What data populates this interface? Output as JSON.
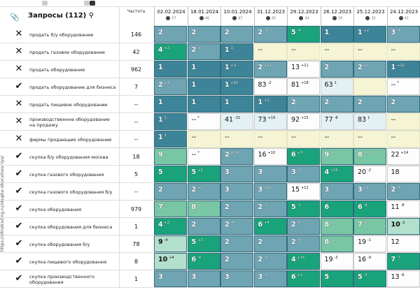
{
  "header": {
    "title": "Запросы (112)",
    "frequency_label": "Частота",
    "search_icon": "search-icon",
    "attach_icon": "paperclip-icon"
  },
  "side_url": "https://ultratrading.ru/skupka-oborudovaniya/",
  "columns": [
    {
      "date": "02.02.2024",
      "pos": "57"
    },
    {
      "date": "18.01.2024",
      "pos": "46"
    },
    {
      "date": "10.01.2024",
      "pos": "47"
    },
    {
      "date": "31.12.2023",
      "pos": "45"
    },
    {
      "date": "29.12.2023",
      "pos": "44"
    },
    {
      "date": "26.12.2023",
      "pos": "39"
    },
    {
      "date": "25.12.2023",
      "pos": "35"
    },
    {
      "date": "24.12.2023",
      "pos": "41"
    }
  ],
  "legend_colors": {
    "d": "#3e8498",
    "m": "#6fa4b3",
    "g": "#1aa37a",
    "lg": "#78c6a4",
    "pg": "#b3e0cc",
    "w": "#fdfdfd",
    "pb": "#e3f1f4",
    "y": "#f5f5d6"
  },
  "rows": [
    {
      "status": "excluded",
      "keyword": "продать б/у оборудование",
      "freq": "146",
      "cells": [
        [
          "2",
          "",
          "m"
        ],
        [
          "2",
          "",
          "m"
        ],
        [
          "2",
          "",
          "m"
        ],
        [
          "2",
          "-3",
          "m"
        ],
        [
          "5",
          "-4",
          "g"
        ],
        [
          "1",
          "",
          "d"
        ],
        [
          "1",
          "+2",
          "d"
        ],
        [
          "3",
          "-4",
          "m"
        ]
      ]
    },
    {
      "status": "excluded",
      "keyword": "продать газовое оборудование",
      "freq": "42",
      "cells": [
        [
          "4",
          "+2",
          "g"
        ],
        [
          "2",
          "+1",
          "m"
        ],
        [
          "1",
          "1",
          "d"
        ],
        [
          "--",
          "",
          "y"
        ],
        [
          "--",
          "",
          "y"
        ],
        [
          "--",
          "",
          "y"
        ],
        [
          "--",
          "",
          "y"
        ],
        [
          "--",
          "",
          "y"
        ]
      ]
    },
    {
      "status": "excluded",
      "keyword": "продать оборудование",
      "freq": "962",
      "cells": [
        [
          "1",
          "",
          "d"
        ],
        [
          "1",
          "",
          "d"
        ],
        [
          "1",
          "+3",
          "d"
        ],
        [
          "2",
          "+11",
          "m"
        ],
        [
          "13",
          "+11",
          "w"
        ],
        [
          "2",
          "",
          "m"
        ],
        [
          "2",
          "+1",
          "m"
        ],
        [
          "1",
          "+12",
          "d"
        ]
      ]
    },
    {
      "status": "included",
      "keyword": "продать оборудование для бизнеса",
      "freq": "7",
      "cells": [
        [
          "2",
          "+1",
          "m"
        ],
        [
          "1",
          "",
          "d"
        ],
        [
          "1",
          "+82",
          "d"
        ],
        [
          "83",
          "-2",
          "w"
        ],
        [
          "81",
          "+18",
          "w"
        ],
        [
          "63",
          "1",
          "pb"
        ],
        [
          "",
          "",
          "y"
        ],
        [
          "--",
          "*",
          "w"
        ]
      ]
    },
    {
      "status": "excluded",
      "keyword": "продать пищевое оборудование",
      "freq": "--",
      "cells": [
        [
          "1",
          "",
          "d"
        ],
        [
          "1",
          "",
          "d"
        ],
        [
          "1",
          "",
          "d"
        ],
        [
          "1",
          "+1",
          "d"
        ],
        [
          "2",
          "",
          "m"
        ],
        [
          "2",
          "",
          "m"
        ],
        [
          "2",
          "",
          "m"
        ],
        [
          "2",
          "",
          "m"
        ]
      ]
    },
    {
      "status": "excluded",
      "keyword": "производственное оборудование на продажу",
      "freq": "--",
      "cells": [
        [
          "1",
          "1",
          "d"
        ],
        [
          "--",
          "*",
          "w"
        ],
        [
          "41",
          "-32",
          "pb"
        ],
        [
          "73",
          "+19",
          "pb"
        ],
        [
          "92",
          "+15",
          "w"
        ],
        [
          "77",
          "-8",
          "pb"
        ],
        [
          "83",
          "1",
          "pb"
        ],
        [
          "--",
          "",
          "y"
        ]
      ]
    },
    {
      "status": "excluded",
      "keyword": "фирмы продающие оборудование",
      "freq": "--",
      "cells": [
        [
          "1",
          "1",
          "d"
        ],
        [
          "--",
          "",
          "y"
        ],
        [
          "--",
          "",
          "y"
        ],
        [
          "--",
          "",
          "y"
        ],
        [
          "--",
          "",
          "y"
        ],
        [
          "--",
          "",
          "y"
        ],
        [
          "--",
          "",
          "y"
        ],
        [
          "--",
          "",
          "y"
        ]
      ]
    },
    {
      "status": "included",
      "keyword": "скупка б/у оборудования москва",
      "freq": "18",
      "cells": [
        [
          "9",
          "1",
          "lg"
        ],
        [
          "--",
          "*",
          "w"
        ],
        [
          "2",
          "+14",
          "m"
        ],
        [
          "16",
          "+10",
          "w"
        ],
        [
          "6",
          "+3",
          "g"
        ],
        [
          "9",
          "+1",
          "lg"
        ],
        [
          "8",
          "+14",
          "lg"
        ],
        [
          "22",
          "+14",
          "w"
        ]
      ]
    },
    {
      "status": "included",
      "keyword": "скупка газового оборудования",
      "freq": "5",
      "cells": [
        [
          "5",
          "",
          "g"
        ],
        [
          "5",
          "+2",
          "g"
        ],
        [
          "3",
          "",
          "m"
        ],
        [
          "3",
          "",
          "m"
        ],
        [
          "3",
          "-1",
          "m"
        ],
        [
          "4",
          "+16",
          "g"
        ],
        [
          "20",
          "-2",
          "w"
        ],
        [
          "18",
          "",
          "w"
        ]
      ]
    },
    {
      "status": "included",
      "keyword": "скупка газового оборудования б/у",
      "freq": "--",
      "cells": [
        [
          "2",
          "",
          "m"
        ],
        [
          "2",
          "+1",
          "m"
        ],
        [
          "3",
          "",
          "m"
        ],
        [
          "3",
          "+12",
          "m"
        ],
        [
          "15",
          "+12",
          "w"
        ],
        [
          "3",
          "",
          "m"
        ],
        [
          "3",
          "+1",
          "m"
        ],
        [
          "2",
          "-1",
          "m"
        ]
      ]
    },
    {
      "status": "included",
      "keyword": "скупка оборудования",
      "freq": "979",
      "cells": [
        [
          "7",
          "-1",
          "lg"
        ],
        [
          "8",
          "+6",
          "lg"
        ],
        [
          "2",
          "",
          "m"
        ],
        [
          "2",
          "-3",
          "m"
        ],
        [
          "5",
          "-1",
          "g"
        ],
        [
          "6",
          "",
          "g"
        ],
        [
          "6",
          "-6",
          "g"
        ],
        [
          "11",
          "-8",
          "w"
        ]
      ]
    },
    {
      "status": "included",
      "keyword": "скупка оборудования для бизнеса",
      "freq": "1",
      "cells": [
        [
          "4",
          "+2",
          "g"
        ],
        [
          "2",
          "",
          "m"
        ],
        [
          "2",
          "-4",
          "m"
        ],
        [
          "6",
          "+4",
          "g"
        ],
        [
          "2",
          "-6",
          "m"
        ],
        [
          "8",
          "+1",
          "lg"
        ],
        [
          "7",
          "-8",
          "lg"
        ],
        [
          "10",
          "-2",
          "pg"
        ]
      ]
    },
    {
      "status": "included",
      "keyword": "скупка оборудования б/у",
      "freq": "78",
      "cells": [
        [
          "9",
          "-4",
          "pg"
        ],
        [
          "5",
          "+3",
          "g"
        ],
        [
          "2",
          "",
          "m"
        ],
        [
          "2",
          "",
          "m"
        ],
        [
          "2",
          "-6",
          "m"
        ],
        [
          "8",
          "+11",
          "lg"
        ],
        [
          "19",
          "-1",
          "w"
        ],
        [
          "12",
          "",
          "w"
        ]
      ]
    },
    {
      "status": "included",
      "keyword": "скупка пищевого оборудования",
      "freq": "8",
      "cells": [
        [
          "10",
          "+4",
          "pg"
        ],
        [
          "6",
          "-4",
          "g"
        ],
        [
          "2",
          "",
          "m"
        ],
        [
          "2",
          "-2",
          "m"
        ],
        [
          "4",
          "+15",
          "g"
        ],
        [
          "19",
          "-3",
          "w"
        ],
        [
          "16",
          "-9",
          "w"
        ],
        [
          "7",
          "-7",
          "g"
        ]
      ]
    },
    {
      "status": "included",
      "keyword": "скупка производственного оборудования",
      "freq": "1",
      "cells": [
        [
          "3",
          "",
          "m"
        ],
        [
          "3",
          "",
          "m"
        ],
        [
          "3",
          "",
          "m"
        ],
        [
          "3",
          "-3",
          "m"
        ],
        [
          "6",
          "+1",
          "g"
        ],
        [
          "5",
          "",
          "g"
        ],
        [
          "5",
          "-3",
          "g"
        ],
        [
          "13",
          "-6",
          "w"
        ]
      ]
    }
  ]
}
